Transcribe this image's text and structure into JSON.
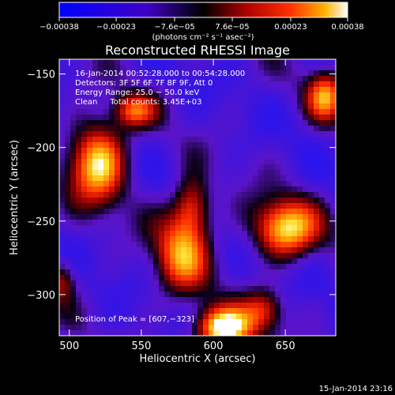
{
  "chart_data": {
    "type": "heatmap",
    "title": "Reconstructed RHESSI Image",
    "xlabel": "Heliocentric X (arcsec)",
    "ylabel": "Heliocentric Y (arcsec)",
    "xlim": [
      493,
      685
    ],
    "ylim": [
      -328,
      -140
    ],
    "x_ticks": [
      {
        "value": 500,
        "label": "500"
      },
      {
        "value": 550,
        "label": "550"
      },
      {
        "value": 600,
        "label": "600"
      },
      {
        "value": 650,
        "label": "650"
      }
    ],
    "y_ticks": [
      {
        "value": -150,
        "label": "−150"
      },
      {
        "value": -200,
        "label": "−200"
      },
      {
        "value": -250,
        "label": "−250"
      },
      {
        "value": -300,
        "label": "−300"
      }
    ],
    "colorbar": {
      "min": -0.00038,
      "max": 0.00038,
      "tick_labels": [
        {
          "value": -0.00038,
          "label": "−0.00038"
        },
        {
          "value": -0.00023,
          "label": "−0.00023"
        },
        {
          "value": -7.6e-05,
          "label": "−7.6e−05"
        },
        {
          "value": 7.6e-05,
          "label": "7.6e−05"
        },
        {
          "value": 0.00023,
          "label": "0.00023"
        },
        {
          "value": 0.00038,
          "label": "0.00038"
        }
      ],
      "unit": "(photons cm⁻² s⁻¹ asec⁻²)"
    },
    "annotations": {
      "time_range": "16-Jan-2014 00:52:28.000 to 00:54:28.000",
      "detectors": "Detectors: 3F 5F 6F 7F 8F 9F, Att 0",
      "energy": "Energy Range: 25.0 − 50.0 keV",
      "clean": "Clean     Total counts: 3.45E+03",
      "peak": "Position of Peak = [607,−323]"
    },
    "footer_date": "15-Jan-2014 23:16",
    "peak_position": [
      607,
      -323
    ],
    "sources": [
      {
        "x": 520,
        "y": -210,
        "level": 0.85,
        "sx": 14,
        "sy": 20
      },
      {
        "x": 545,
        "y": -175,
        "level": 0.55,
        "sx": 10,
        "sy": 8
      },
      {
        "x": 578,
        "y": -272,
        "level": 0.65,
        "sx": 14,
        "sy": 20
      },
      {
        "x": 585,
        "y": -240,
        "level": 0.55,
        "sx": 9,
        "sy": 14
      },
      {
        "x": 650,
        "y": -255,
        "level": 0.85,
        "sx": 16,
        "sy": 14
      },
      {
        "x": 678,
        "y": -165,
        "level": 0.65,
        "sx": 9,
        "sy": 12
      },
      {
        "x": 607,
        "y": -323,
        "level": 1.0,
        "sx": 14,
        "sy": 10
      },
      {
        "x": 635,
        "y": -310,
        "level": 0.45,
        "sx": 10,
        "sy": 10
      },
      {
        "x": 495,
        "y": -290,
        "level": 0.4,
        "sx": 7,
        "sy": 10
      }
    ]
  }
}
